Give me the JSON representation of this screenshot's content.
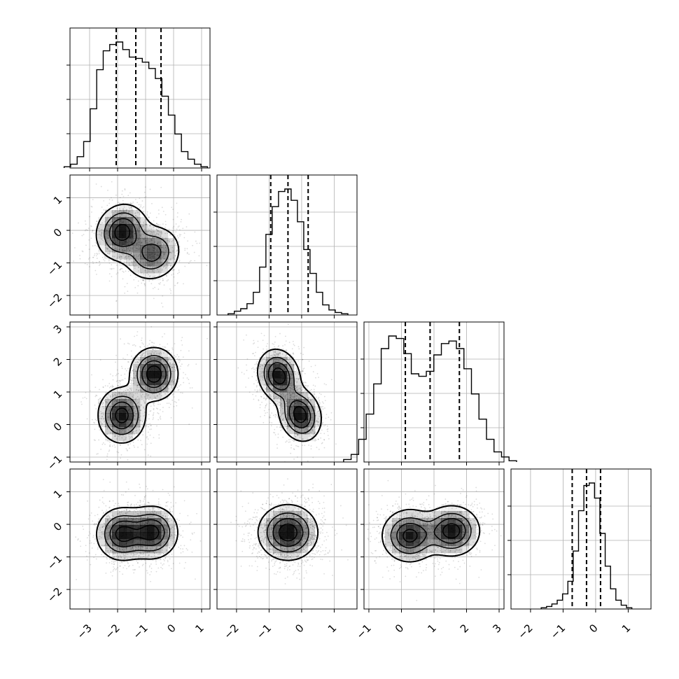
{
  "chart_data": {
    "type": "corner",
    "n_params": 4,
    "title": "",
    "grid": true,
    "colors": {
      "line": "#000000",
      "grid": "#b0b0b0",
      "quantile": "#000000",
      "density": "#000000"
    },
    "params": [
      {
        "name": "",
        "range": [
          -3.7,
          1.3
        ],
        "ticks": [
          -3,
          -2,
          -1,
          0,
          1
        ],
        "tick_labels": [
          "−3",
          "−2",
          "−1",
          "0",
          "1"
        ],
        "quantiles": [
          -2.05,
          -1.35,
          -0.45
        ],
        "hist": [
          0.01,
          0.03,
          0.09,
          0.21,
          0.47,
          0.78,
          0.93,
          0.98,
          1.0,
          0.94,
          0.88,
          0.87,
          0.84,
          0.79,
          0.71,
          0.57,
          0.42,
          0.27,
          0.13,
          0.07,
          0.03,
          0.01
        ]
      },
      {
        "name": "",
        "range": [
          -2.6,
          1.7
        ],
        "ticks": [
          -2,
          -1,
          0,
          1
        ],
        "tick_labels": [
          "−2",
          "−1",
          "0",
          "1"
        ],
        "quantiles": [
          -0.95,
          -0.42,
          0.2
        ],
        "hist": [
          0.01,
          0.03,
          0.05,
          0.09,
          0.18,
          0.38,
          0.64,
          0.86,
          0.98,
          1.0,
          0.91,
          0.74,
          0.52,
          0.33,
          0.18,
          0.08,
          0.04,
          0.02,
          0.01
        ]
      },
      {
        "name": "",
        "range": [
          -1.15,
          3.15
        ],
        "ticks": [
          -1,
          0,
          1,
          2,
          3
        ],
        "tick_labels": [
          "−1",
          "0",
          "1",
          "2",
          "3"
        ],
        "quantiles": [
          0.12,
          0.88,
          1.78
        ],
        "hist": [
          0.02,
          0.06,
          0.18,
          0.38,
          0.62,
          0.9,
          1.0,
          0.98,
          0.86,
          0.7,
          0.68,
          0.72,
          0.85,
          0.94,
          0.96,
          0.9,
          0.74,
          0.54,
          0.34,
          0.18,
          0.08,
          0.04,
          0.01
        ]
      },
      {
        "name": "",
        "range": [
          -2.6,
          1.7
        ],
        "ticks": [
          -2,
          -1,
          0,
          1
        ],
        "tick_labels": [
          "−2",
          "−1",
          "0",
          "1"
        ],
        "quantiles": [
          -0.72,
          -0.28,
          0.15
        ],
        "hist": [
          0.01,
          0.02,
          0.04,
          0.07,
          0.12,
          0.22,
          0.46,
          0.78,
          0.98,
          1.0,
          0.88,
          0.6,
          0.34,
          0.16,
          0.07,
          0.03,
          0.01
        ]
      }
    ],
    "pairs": [
      {
        "x": 0,
        "y": 1,
        "components": [
          {
            "mx": -1.85,
            "my": -0.05,
            "sx": 0.45,
            "sy": 0.42,
            "w": 0.55,
            "rho": 0.1
          },
          {
            "mx": -0.75,
            "my": -0.7,
            "sx": 0.5,
            "sy": 0.42,
            "w": 0.45,
            "rho": 0.1
          }
        ]
      },
      {
        "x": 0,
        "y": 2,
        "components": [
          {
            "mx": -1.85,
            "my": 0.28,
            "sx": 0.42,
            "sy": 0.42,
            "w": 0.5,
            "rho": 0.0
          },
          {
            "mx": -0.7,
            "my": 1.55,
            "sx": 0.42,
            "sy": 0.4,
            "w": 0.5,
            "rho": 0.0
          }
        ]
      },
      {
        "x": 1,
        "y": 2,
        "components": [
          {
            "mx": -0.7,
            "my": 1.5,
            "sx": 0.32,
            "sy": 0.4,
            "w": 0.5,
            "rho": -0.15
          },
          {
            "mx": -0.05,
            "my": 0.3,
            "sx": 0.32,
            "sy": 0.4,
            "w": 0.5,
            "rho": -0.15
          }
        ]
      },
      {
        "x": 0,
        "y": 3,
        "components": [
          {
            "mx": -1.85,
            "my": -0.3,
            "sx": 0.45,
            "sy": 0.4,
            "w": 0.5,
            "rho": 0.0
          },
          {
            "mx": -0.75,
            "my": -0.25,
            "sx": 0.45,
            "sy": 0.4,
            "w": 0.5,
            "rho": 0.0
          }
        ]
      },
      {
        "x": 1,
        "y": 3,
        "components": [
          {
            "mx": -0.42,
            "my": -0.25,
            "sx": 0.45,
            "sy": 0.42,
            "w": 1.0,
            "rho": 0.0
          }
        ]
      },
      {
        "x": 2,
        "y": 3,
        "components": [
          {
            "mx": 0.25,
            "my": -0.35,
            "sx": 0.42,
            "sy": 0.4,
            "w": 0.5,
            "rho": 0.0
          },
          {
            "mx": 1.55,
            "my": -0.2,
            "sx": 0.42,
            "sy": 0.38,
            "w": 0.5,
            "rho": 0.0
          }
        ]
      }
    ]
  }
}
